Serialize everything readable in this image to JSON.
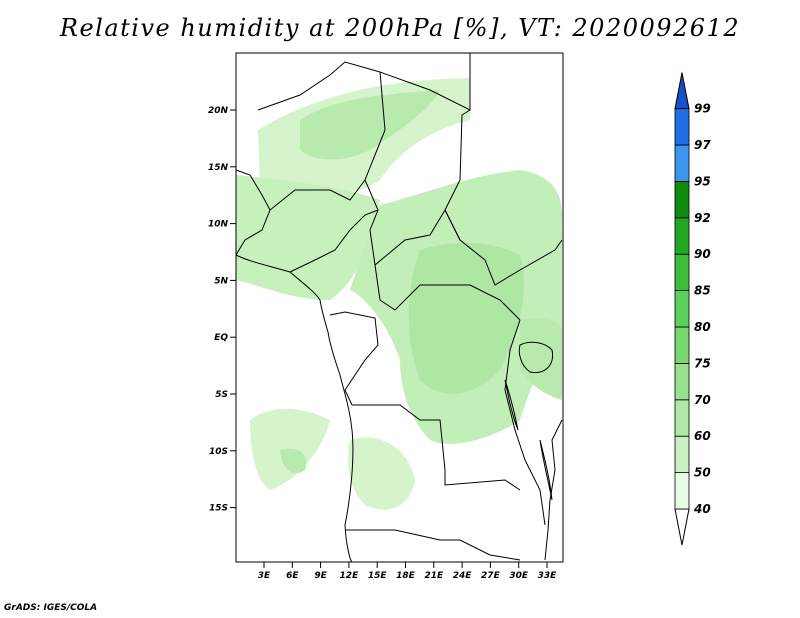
{
  "title": "Relative humidity at 200hPa [%], VT: 2020092612",
  "credit": "GrADS: IGES/COLA",
  "lat_ticks": [
    "20N",
    "15N",
    "10N",
    "5N",
    "EQ",
    "5S",
    "10S",
    "15S"
  ],
  "lon_ticks": [
    "3E",
    "6E",
    "9E",
    "12E",
    "15E",
    "18E",
    "21E",
    "24E",
    "27E",
    "30E",
    "33E"
  ],
  "colorbar": {
    "levels": [
      "40",
      "50",
      "60",
      "70",
      "75",
      "80",
      "85",
      "90",
      "92",
      "95",
      "97",
      "99"
    ],
    "colors": [
      "#e6fae6",
      "#c8f0c0",
      "#b0e8a8",
      "#98e090",
      "#78d870",
      "#5cd05c",
      "#3cbe3c",
      "#22a822",
      "#0e8c0e",
      "#3c96f0",
      "#1e6ee6",
      "#1450c8"
    ]
  }
}
